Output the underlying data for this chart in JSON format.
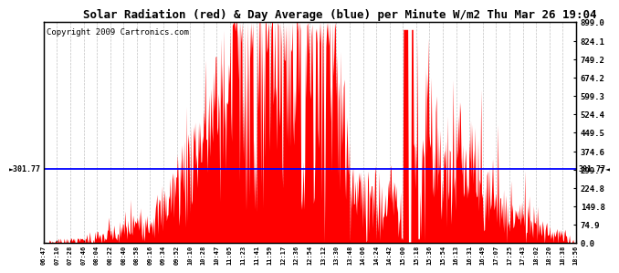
{
  "title": "Solar Radiation (red) & Day Average (blue) per Minute W/m2 Thu Mar 26 19:04",
  "copyright": "Copyright 2009 Cartronics.com",
  "day_average": 301.77,
  "y_max": 899.0,
  "y_min": 0.0,
  "ytick_values": [
    0.0,
    74.9,
    149.8,
    224.8,
    299.7,
    374.6,
    449.5,
    524.4,
    599.3,
    674.2,
    749.2,
    824.1,
    899.0
  ],
  "x_tick_labels": [
    "06:47",
    "07:10",
    "07:28",
    "07:46",
    "08:04",
    "08:22",
    "08:40",
    "08:58",
    "09:16",
    "09:34",
    "09:52",
    "10:10",
    "10:28",
    "10:47",
    "11:05",
    "11:23",
    "11:41",
    "11:59",
    "12:17",
    "12:36",
    "12:54",
    "13:12",
    "13:30",
    "13:48",
    "14:06",
    "14:24",
    "14:42",
    "15:00",
    "15:18",
    "15:36",
    "15:54",
    "16:13",
    "16:31",
    "16:49",
    "17:07",
    "17:25",
    "17:43",
    "18:02",
    "18:20",
    "18:38",
    "18:56"
  ],
  "background_color": "#ffffff",
  "fill_color": "#ff0000",
  "line_color": "#0000ff",
  "grid_color": "#bbbbbb",
  "title_fontsize": 9,
  "copyright_fontsize": 6.5,
  "left_annotation": "►301.77",
  "right_annotation": "301.77◄"
}
